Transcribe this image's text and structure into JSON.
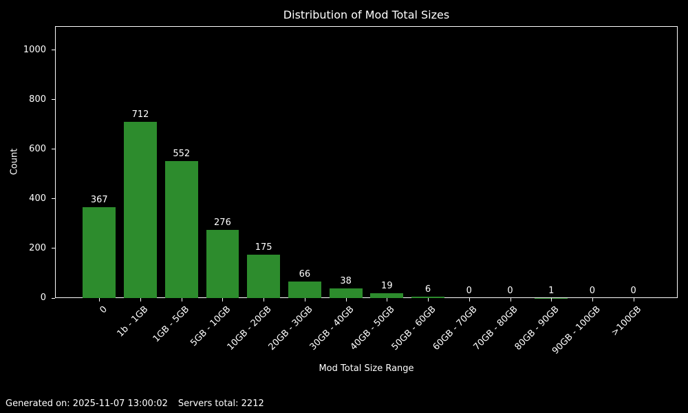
{
  "chart_data": {
    "type": "bar",
    "title": "Distribution of Mod Total Sizes",
    "xlabel": "Mod Total Size Range",
    "ylabel": "Count",
    "categories": [
      "0",
      "1b - 1GB",
      "1GB - 5GB",
      "5GB - 10GB",
      "10GB - 20GB",
      "20GB - 30GB",
      "30GB - 40GB",
      "40GB - 50GB",
      "50GB - 60GB",
      "60GB - 70GB",
      "70GB - 80GB",
      "80GB - 90GB",
      "90GB - 100GB",
      ">100GB"
    ],
    "values": [
      367,
      712,
      552,
      276,
      175,
      66,
      38,
      19,
      6,
      0,
      0,
      1,
      0,
      0
    ],
    "yticks": [
      0,
      200,
      400,
      600,
      800,
      1000
    ],
    "ylim": [
      0,
      1097
    ],
    "grid": false,
    "legend": null,
    "bar_color": "#2d8c2d",
    "background_color": "#000000",
    "text_color": "#ffffff"
  },
  "footer": {
    "generated": "Generated on: 2025-11-07 13:00:02",
    "servers_total": "Servers total: 2212"
  }
}
